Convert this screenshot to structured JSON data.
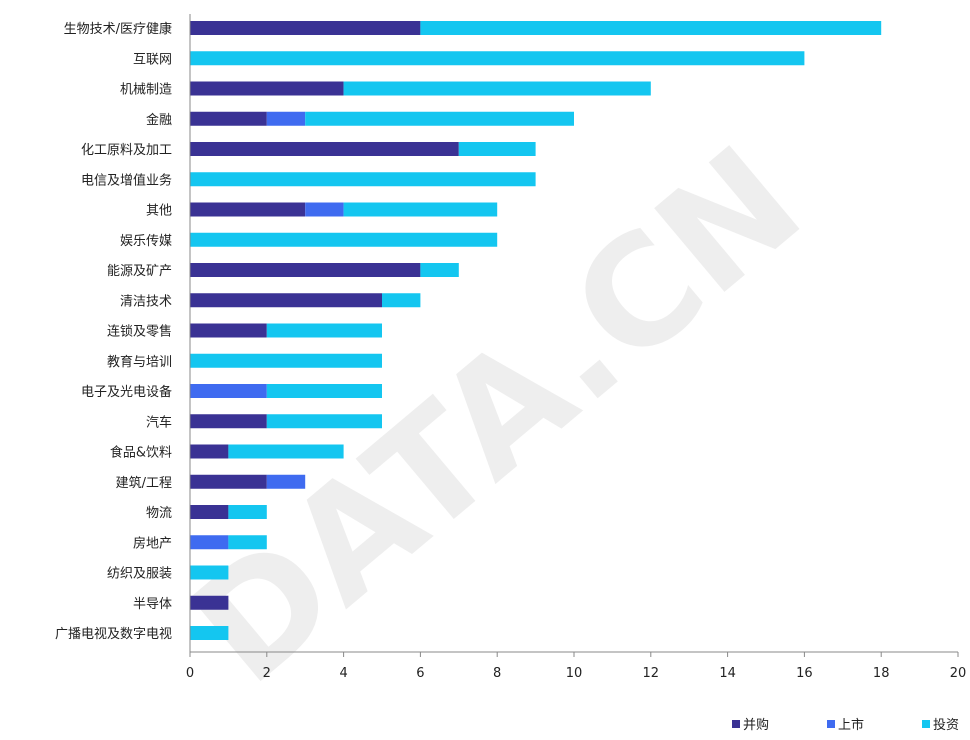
{
  "chart_data": {
    "type": "bar",
    "orientation": "horizontal",
    "stacked": true,
    "categories": [
      "生物技术/医疗健康",
      "互联网",
      "机械制造",
      "金融",
      "化工原料及加工",
      "电信及增值业务",
      "其他",
      "娱乐传媒",
      "能源及矿产",
      "清洁技术",
      "连锁及零售",
      "教育与培训",
      "电子及光电设备",
      "汽车",
      "食品&饮料",
      "建筑/工程",
      "物流",
      "房地产",
      "纺织及服装",
      "半导体",
      "广播电视及数字电视"
    ],
    "series": [
      {
        "name": "并购",
        "values": [
          6,
          0,
          4,
          2,
          7,
          0,
          3,
          0,
          6,
          5,
          2,
          0,
          0,
          2,
          1,
          2,
          1,
          0,
          0,
          1,
          0
        ]
      },
      {
        "name": "上市",
        "values": [
          0,
          0,
          0,
          1,
          0,
          0,
          1,
          0,
          0,
          0,
          0,
          0,
          2,
          0,
          0,
          1,
          0,
          1,
          0,
          0,
          0
        ]
      },
      {
        "name": "投资",
        "values": [
          12,
          16,
          8,
          7,
          2,
          9,
          4,
          8,
          1,
          1,
          3,
          5,
          3,
          3,
          3,
          0,
          1,
          1,
          1,
          0,
          1
        ]
      }
    ],
    "xlim": [
      0,
      20
    ],
    "xticks": [
      "0",
      "2",
      "4",
      "6",
      "8",
      "10",
      "12",
      "14",
      "16",
      "18",
      "20"
    ],
    "colors": [
      "#3a3294",
      "#3f6bf0",
      "#14c6f0"
    ],
    "grid": false,
    "legend_position": "bottom-right",
    "watermark": "DATA.CN"
  }
}
